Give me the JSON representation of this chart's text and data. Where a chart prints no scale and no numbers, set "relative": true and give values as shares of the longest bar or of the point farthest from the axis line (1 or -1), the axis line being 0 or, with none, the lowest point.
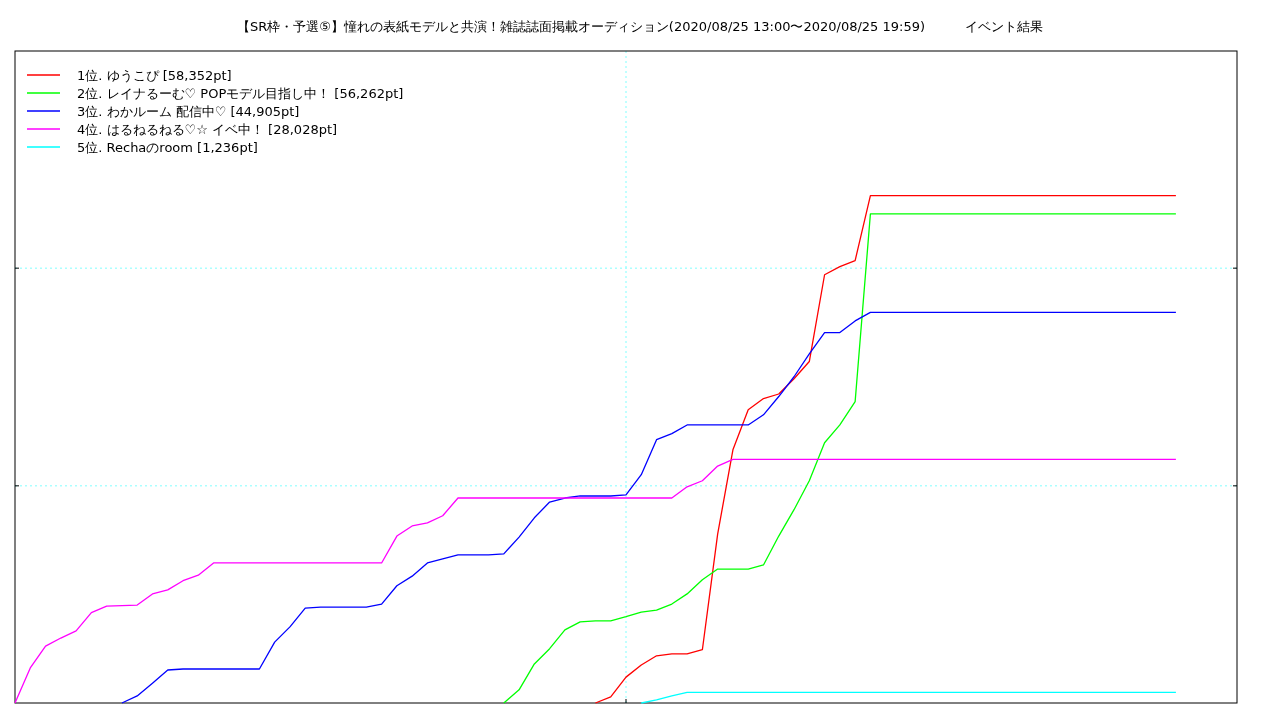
{
  "chart_data": {
    "type": "line",
    "relative": true,
    "title": "【SR枠・予選⑤】憧れの表紙モデルと共演！雑誌誌面掲載オーディション(2020/08/25 13:00〜2020/08/25 19:59)",
    "subtitle": "イベント結果",
    "categories": [
      null,
      null,
      null,
      null,
      null,
      null,
      null,
      null,
      null,
      null,
      null,
      null,
      null,
      null,
      null,
      null,
      null,
      null,
      null,
      null,
      null,
      null,
      null,
      null,
      null,
      null,
      null,
      null,
      null,
      null,
      null,
      null,
      null,
      null,
      null,
      null,
      null,
      null,
      null,
      null,
      null,
      null,
      null,
      null,
      null,
      null,
      null,
      null,
      null,
      null,
      null,
      null,
      null,
      null,
      null,
      null,
      null,
      null,
      null,
      null,
      null,
      null,
      null,
      null,
      null,
      null,
      null,
      null,
      null,
      null,
      null,
      null,
      null,
      null,
      null,
      null,
      null,
      null,
      null,
      null,
      null
    ],
    "legend": "top left",
    "ref_lines": [
      {
        "axis": "y",
        "value": 0.428,
        "color": "#80ffff",
        "line_style": "dotted"
      },
      {
        "axis": "y",
        "value": 0.857,
        "color": "#80ffff",
        "line_style": "dotted"
      }
    ],
    "series": [
      {
        "name": "1位. ゆうこぴ [58,352pt]",
        "color": "#ff0000",
        "values": [
          null,
          null,
          null,
          null,
          null,
          null,
          null,
          null,
          null,
          null,
          null,
          null,
          null,
          null,
          null,
          null,
          null,
          null,
          null,
          null,
          null,
          null,
          null,
          null,
          null,
          null,
          null,
          null,
          null,
          null,
          null,
          null,
          null,
          null,
          null,
          null,
          null,
          null,
          0,
          0.012,
          0.051,
          0.075,
          0.093,
          0.097,
          0.097,
          0.105,
          0.333,
          0.499,
          0.578,
          0.6,
          0.609,
          0.639,
          0.673,
          0.844,
          0.86,
          0.872,
          1,
          1,
          1,
          1,
          1,
          1,
          1,
          1,
          1,
          1,
          1,
          1,
          1,
          1,
          1,
          1,
          1,
          1,
          1,
          1,
          1,
          null,
          null,
          null,
          null
        ]
      },
      {
        "name": "2位. レイナるーむ♡ POPモデル目指し中！ [56,262pt]",
        "color": "#00ff00",
        "values": [
          null,
          null,
          null,
          null,
          null,
          null,
          null,
          null,
          null,
          null,
          null,
          null,
          null,
          null,
          null,
          null,
          null,
          null,
          null,
          null,
          null,
          null,
          null,
          null,
          null,
          null,
          null,
          null,
          null,
          null,
          null,
          null,
          0,
          0.026,
          0.077,
          0.107,
          0.144,
          0.16,
          0.162,
          0.162,
          0.17,
          0.179,
          0.183,
          0.195,
          0.215,
          0.243,
          0.264,
          0.264,
          0.264,
          0.272,
          0.329,
          0.381,
          0.438,
          0.513,
          0.548,
          0.594,
          0.964,
          0.964,
          0.964,
          0.964,
          0.964,
          0.964,
          0.964,
          0.964,
          0.964,
          0.964,
          0.964,
          0.964,
          0.964,
          0.964,
          0.964,
          0.964,
          0.964,
          0.964,
          0.964,
          0.964,
          0.964,
          null,
          null,
          null,
          null
        ]
      },
      {
        "name": "3位. わかルーム 配信中♡ [44,905pt]",
        "color": "#0000ff",
        "values": [
          null,
          null,
          null,
          null,
          null,
          null,
          null,
          0,
          0.014,
          0.039,
          0.065,
          0.067,
          0.067,
          0.067,
          0.067,
          0.067,
          0.067,
          0.12,
          0.15,
          0.187,
          0.189,
          0.189,
          0.189,
          0.189,
          0.195,
          0.231,
          0.25,
          0.276,
          0.284,
          0.292,
          0.292,
          0.292,
          0.294,
          0.327,
          0.365,
          0.396,
          0.404,
          0.408,
          0.408,
          0.408,
          0.41,
          0.45,
          0.519,
          0.531,
          0.548,
          0.548,
          0.548,
          0.548,
          0.548,
          0.568,
          0.604,
          0.643,
          0.688,
          0.73,
          0.73,
          0.753,
          0.77,
          0.77,
          0.77,
          0.77,
          0.77,
          0.77,
          0.77,
          0.77,
          0.77,
          0.77,
          0.77,
          0.77,
          0.77,
          0.77,
          0.77,
          0.77,
          0.77,
          0.77,
          0.77,
          0.77,
          0.77,
          null,
          null,
          null,
          null
        ]
      },
      {
        "name": "4位. はるねるねる♡☆ イベ中！ [28,028pt]",
        "color": "#ff00ff",
        "values": [
          0,
          0.069,
          0.112,
          0.128,
          0.142,
          0.178,
          0.191,
          0.192,
          0.193,
          0.215,
          0.223,
          0.241,
          0.252,
          0.276,
          0.276,
          0.276,
          0.276,
          0.276,
          0.276,
          0.276,
          0.276,
          0.276,
          0.276,
          0.276,
          0.276,
          0.329,
          0.349,
          0.355,
          0.369,
          0.404,
          0.404,
          0.404,
          0.404,
          0.404,
          0.404,
          0.404,
          0.404,
          0.404,
          0.404,
          0.404,
          0.404,
          0.404,
          0.404,
          0.404,
          0.426,
          0.438,
          0.467,
          0.48,
          0.48,
          0.48,
          0.48,
          0.48,
          0.48,
          0.48,
          0.48,
          0.48,
          0.48,
          0.48,
          0.48,
          0.48,
          0.48,
          0.48,
          0.48,
          0.48,
          0.48,
          0.48,
          0.48,
          0.48,
          0.48,
          0.48,
          0.48,
          0.48,
          0.48,
          0.48,
          0.48,
          0.48,
          0.48,
          null,
          null,
          null,
          null
        ]
      },
      {
        "name": "5位. Rechaのroom [1,236pt]",
        "color": "#00ffff",
        "values": [
          null,
          null,
          null,
          null,
          null,
          null,
          null,
          null,
          null,
          null,
          null,
          null,
          null,
          null,
          null,
          null,
          null,
          null,
          null,
          null,
          null,
          null,
          null,
          null,
          null,
          null,
          null,
          null,
          null,
          null,
          null,
          null,
          null,
          null,
          null,
          null,
          null,
          null,
          null,
          null,
          null,
          0,
          0.006,
          0.014,
          0.021,
          0.021,
          0.021,
          0.021,
          0.021,
          0.021,
          0.021,
          0.021,
          0.021,
          0.021,
          0.021,
          0.021,
          0.021,
          0.021,
          0.021,
          0.021,
          0.021,
          0.021,
          0.021,
          0.021,
          0.021,
          0.021,
          0.021,
          0.021,
          0.021,
          0.021,
          0.021,
          0.021,
          0.021,
          0.021,
          0.021,
          0.021,
          0.021,
          null,
          null,
          null,
          null
        ]
      }
    ]
  }
}
